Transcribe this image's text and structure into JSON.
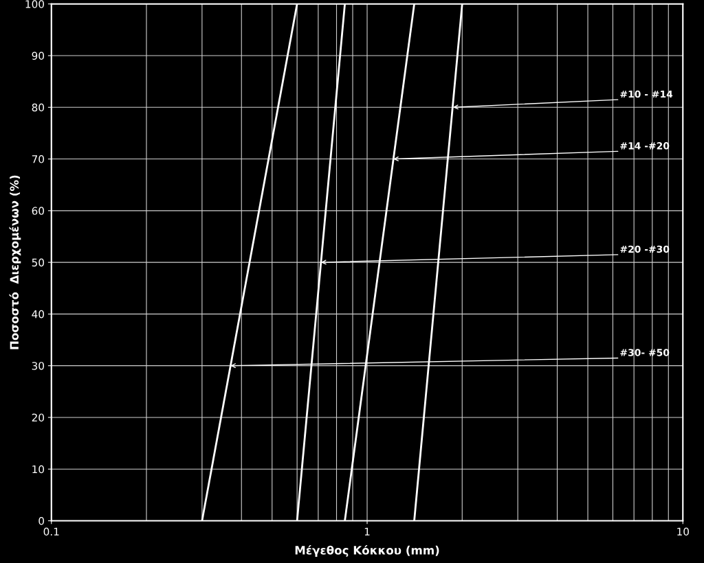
{
  "chart_data": {
    "type": "line",
    "xlabel": "Μέγεθος Κόκκου (mm)",
    "ylabel": "Ποσοστό  Διερχομένων (%)",
    "log": "x",
    "grid": true,
    "marker": "none",
    "line_style": "solid",
    "xlim": [
      0.1,
      10
    ],
    "xticks": [
      0.1,
      1,
      10
    ],
    "ylim": [
      0,
      100
    ],
    "yticks": [
      0,
      10,
      20,
      30,
      40,
      50,
      60,
      70,
      80,
      90,
      100
    ],
    "series": [
      {
        "color": "#ffffff",
        "x": [
          0.3,
          0.6
        ],
        "values": [
          0,
          100
        ]
      },
      {
        "color": "#ffffff",
        "x": [
          0.6,
          0.85
        ],
        "values": [
          0,
          100
        ]
      },
      {
        "color": "#ffffff",
        "x": [
          0.85,
          1.41
        ],
        "values": [
          0,
          100
        ]
      },
      {
        "color": "#ffffff",
        "x": [
          1.41,
          2.0
        ],
        "values": [
          0,
          100
        ]
      }
    ],
    "annotations": [
      {
        "text": "#10 - #14",
        "x": 1.87,
        "y": 80
      },
      {
        "text": "#14 -#20",
        "x": 1.21,
        "y": 70
      },
      {
        "text": "#20 -#30",
        "x": 0.714,
        "y": 50
      },
      {
        "text": "#30- #50",
        "x": 0.369,
        "y": 30
      }
    ]
  }
}
